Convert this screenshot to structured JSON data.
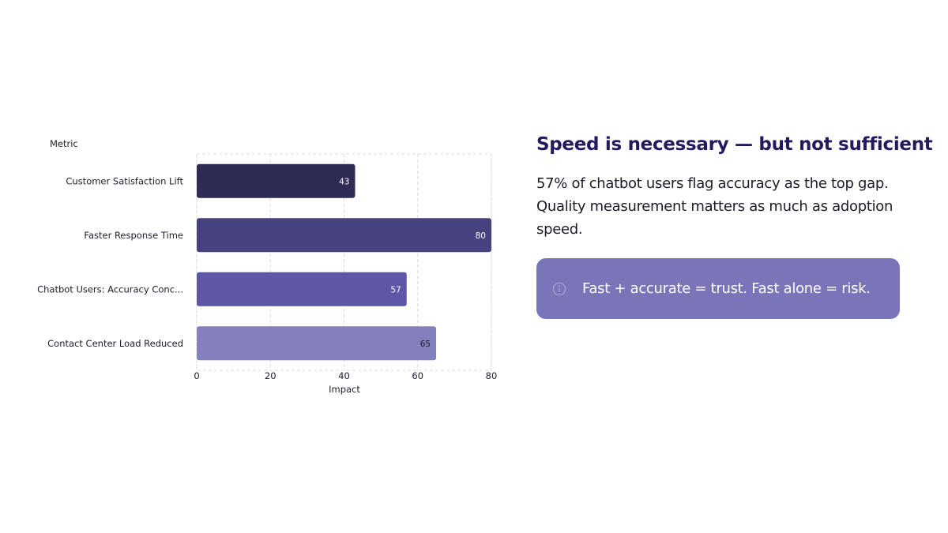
{
  "chart_data": {
    "type": "bar",
    "orientation": "horizontal",
    "ylabel": "Metric",
    "xlabel": "Impact",
    "categories": [
      "Customer Satisfaction Lift",
      "Faster Response Time",
      "Chatbot Users: Accuracy Conc...",
      "Contact Center Load Reduced"
    ],
    "values": [
      43,
      80,
      57,
      65
    ],
    "bar_colors": [
      "#2e2b55",
      "#46417f",
      "#5e56a6",
      "#8480bd"
    ],
    "value_label_colors": [
      "#ffffff",
      "#ffffff",
      "#ffffff",
      "#1c1c2a"
    ],
    "xlim": [
      0,
      80
    ],
    "xticks": [
      0,
      20,
      40,
      60,
      80
    ],
    "grid": true
  },
  "panel": {
    "headline": "Speed is necessary — but not sufficient",
    "body": "57% of chatbot users flag accuracy as the top gap. Quality measurement matters as much as adoption speed.",
    "callout": {
      "icon": "info-icon",
      "text": "Fast + accurate = trust. Fast alone = risk."
    }
  },
  "colors": {
    "headline": "#24195e",
    "callout_bg": "#7a74b8"
  }
}
